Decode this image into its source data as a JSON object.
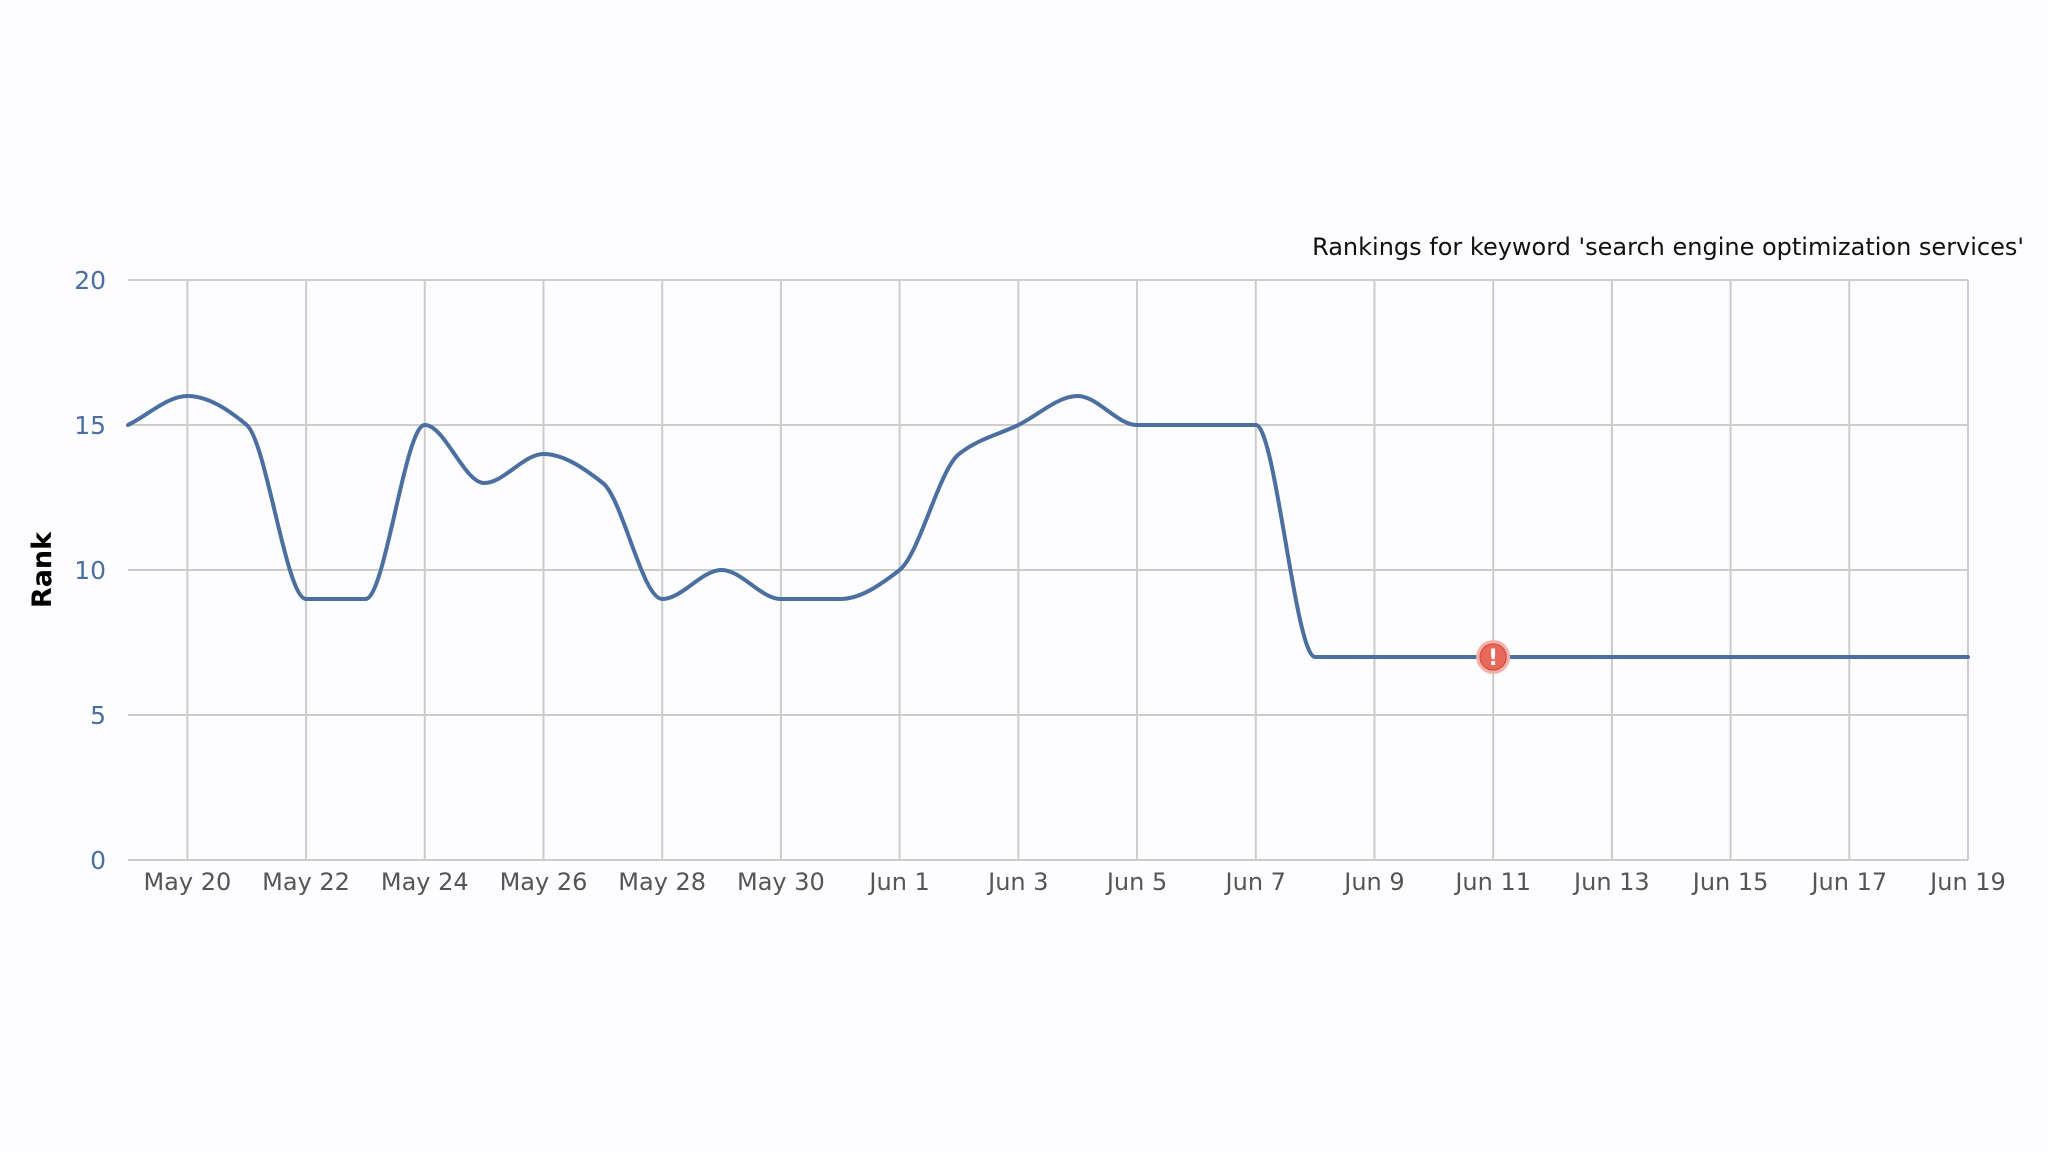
{
  "chart_data": {
    "type": "line",
    "title": "Rankings for keyword 'search engine optimization services'",
    "xlabel": "",
    "ylabel": "Rank",
    "ylim": [
      0,
      20
    ],
    "yticks": [
      0,
      5,
      10,
      15,
      20
    ],
    "xticks": [
      "May 20",
      "May 22",
      "May 24",
      "May 26",
      "May 28",
      "May 30",
      "Jun 1",
      "Jun 3",
      "Jun 5",
      "Jun 7",
      "Jun 9",
      "Jun 11",
      "Jun 13",
      "Jun 15",
      "Jun 17",
      "Jun 19"
    ],
    "grid": true,
    "x": [
      "May 19",
      "May 20",
      "May 21",
      "May 22",
      "May 23",
      "May 24",
      "May 25",
      "May 26",
      "May 27",
      "May 28",
      "May 29",
      "May 30",
      "May 31",
      "Jun 1",
      "Jun 2",
      "Jun 3",
      "Jun 4",
      "Jun 5",
      "Jun 6",
      "Jun 7",
      "Jun 8",
      "Jun 9",
      "Jun 10",
      "Jun 11",
      "Jun 12",
      "Jun 13",
      "Jun 14",
      "Jun 15",
      "Jun 16",
      "Jun 17",
      "Jun 18",
      "Jun 19"
    ],
    "series": [
      {
        "values": [
          15,
          16,
          15,
          9,
          9,
          15,
          13,
          14,
          13,
          9,
          10,
          9,
          9,
          10,
          14,
          15,
          16,
          15,
          15,
          15,
          7,
          7,
          7,
          7,
          7,
          7,
          7,
          7,
          7,
          7,
          7,
          7
        ],
        "color": "#4a6fa0"
      }
    ],
    "annotations": [
      {
        "x": "Jun 11",
        "y": 7,
        "icon": "alert-icon",
        "symbol": "!",
        "color": "#e8685c"
      }
    ]
  },
  "colors": {
    "axis_text": "#4a6fa0",
    "grid": "#cccccc",
    "background": "#fdfcfe"
  }
}
